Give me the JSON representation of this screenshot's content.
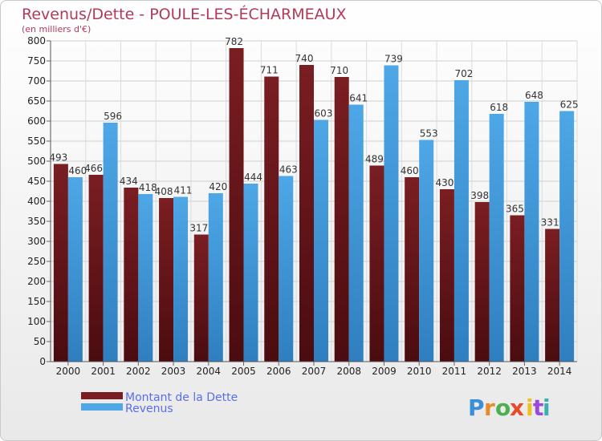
{
  "chart_data": {
    "type": "bar",
    "title": "Revenus/Dette - POULE-LES-ÉCHARMEAUX",
    "subtitle": "(en milliers d'€)",
    "categories": [
      "2000",
      "2001",
      "2002",
      "2003",
      "2004",
      "2005",
      "2006",
      "2007",
      "2008",
      "2009",
      "2010",
      "2011",
      "2012",
      "2013",
      "2014"
    ],
    "series": [
      {
        "name": "Montant de la Dette",
        "color": "#7a1e22",
        "values": [
          493,
          466,
          434,
          408,
          317,
          782,
          711,
          740,
          710,
          489,
          460,
          430,
          398,
          365,
          331
        ]
      },
      {
        "name": "Revenus",
        "color": "#4ea7e6",
        "values": [
          460,
          596,
          418,
          411,
          420,
          444,
          463,
          603,
          641,
          739,
          553,
          702,
          618,
          648,
          625
        ]
      }
    ],
    "ylim": [
      0,
      800
    ],
    "yticks": [
      0,
      50,
      100,
      150,
      200,
      250,
      300,
      350,
      400,
      450,
      500,
      550,
      600,
      650,
      700,
      750,
      800
    ],
    "grid": true,
    "legend_position": "bottom-left"
  },
  "logo": {
    "letters": [
      "P",
      "r",
      "o",
      "x",
      "i",
      "t",
      "i"
    ],
    "colors": [
      "#3a8fd8",
      "#e88a2a",
      "#4caf50",
      "#e84a2a",
      "#f0c020",
      "#9a4ad8",
      "#3ab0b0"
    ]
  }
}
